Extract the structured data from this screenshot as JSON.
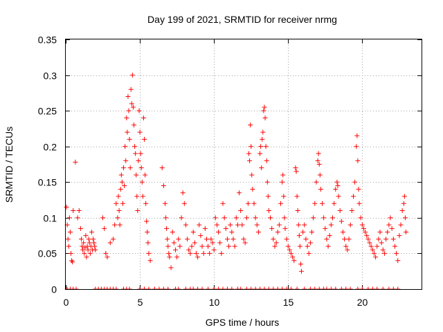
{
  "chart_data": {
    "type": "scatter",
    "title": "Day 199 of 2021, SRMTID for receiver nrmg",
    "xlabel": "GPS time / hours",
    "ylabel": "SRMTID / TECUs",
    "xlim": [
      0,
      24
    ],
    "ylim": [
      0,
      0.35
    ],
    "xticks": [
      0,
      5,
      10,
      15,
      20
    ],
    "xtick_labels": [
      "0",
      "5",
      "10",
      "15",
      "20"
    ],
    "yticks": [
      0,
      0.05,
      0.1,
      0.15,
      0.2,
      0.25,
      0.3,
      0.35
    ],
    "ytick_labels": [
      "0",
      "0.05",
      "0.1",
      "0.15",
      "0.2",
      "0.25",
      "0.3",
      "0.35"
    ],
    "grid": true,
    "marker": "plus",
    "color": "#ff0000",
    "series": [
      {
        "name": "SRMTID",
        "points": [
          [
            0.05,
            0.115
          ],
          [
            0.1,
            0.09
          ],
          [
            0.15,
            0.07
          ],
          [
            0.2,
            0.06
          ],
          [
            0.25,
            0.1
          ],
          [
            0.3,
            0.08
          ],
          [
            0.35,
            0.05
          ],
          [
            0.4,
            0.04
          ],
          [
            0.45,
            0.038
          ],
          [
            0.5,
            0.11
          ],
          [
            0.65,
            0.178
          ],
          [
            0.8,
            0.1
          ],
          [
            0.9,
            0.11
          ],
          [
            1.0,
            0.085
          ],
          [
            1.05,
            0.07
          ],
          [
            1.1,
            0.06
          ],
          [
            1.15,
            0.055
          ],
          [
            1.2,
            0.065
          ],
          [
            1.25,
            0.05
          ],
          [
            1.3,
            0.058
          ],
          [
            1.35,
            0.075
          ],
          [
            1.4,
            0.045
          ],
          [
            1.45,
            0.06
          ],
          [
            1.5,
            0.055
          ],
          [
            1.55,
            0.07
          ],
          [
            1.6,
            0.065
          ],
          [
            1.65,
            0.05
          ],
          [
            1.7,
            0.06
          ],
          [
            1.75,
            0.08
          ],
          [
            1.8,
            0.055
          ],
          [
            1.85,
            0.07
          ],
          [
            1.9,
            0.065
          ],
          [
            1.95,
            0.06
          ],
          [
            2.0,
            0.055
          ],
          [
            2.5,
            0.1
          ],
          [
            2.6,
            0.085
          ],
          [
            2.7,
            0.05
          ],
          [
            2.8,
            0.045
          ],
          [
            3.0,
            0.065
          ],
          [
            3.2,
            0.07
          ],
          [
            3.3,
            0.09
          ],
          [
            3.4,
            0.12
          ],
          [
            3.5,
            0.1
          ],
          [
            3.55,
            0.13
          ],
          [
            3.6,
            0.11
          ],
          [
            3.65,
            0.09
          ],
          [
            3.7,
            0.14
          ],
          [
            3.75,
            0.16
          ],
          [
            3.8,
            0.15
          ],
          [
            3.85,
            0.12
          ],
          [
            3.9,
            0.17
          ],
          [
            3.95,
            0.145
          ],
          [
            4.0,
            0.2
          ],
          [
            4.05,
            0.18
          ],
          [
            4.1,
            0.24
          ],
          [
            4.15,
            0.22
          ],
          [
            4.2,
            0.27
          ],
          [
            4.25,
            0.25
          ],
          [
            4.3,
            0.21
          ],
          [
            4.35,
            0.17
          ],
          [
            4.4,
            0.28
          ],
          [
            4.45,
            0.26
          ],
          [
            4.5,
            0.3
          ],
          [
            4.55,
            0.255
          ],
          [
            4.6,
            0.23
          ],
          [
            4.65,
            0.2
          ],
          [
            4.7,
            0.19
          ],
          [
            4.75,
            0.16
          ],
          [
            4.8,
            0.13
          ],
          [
            4.85,
            0.11
          ],
          [
            4.9,
            0.18
          ],
          [
            4.95,
            0.25
          ],
          [
            5.0,
            0.22
          ],
          [
            5.05,
            0.19
          ],
          [
            5.1,
            0.17
          ],
          [
            5.15,
            0.15
          ],
          [
            5.2,
            0.13
          ],
          [
            5.25,
            0.24
          ],
          [
            5.3,
            0.21
          ],
          [
            5.35,
            0.16
          ],
          [
            5.4,
            0.12
          ],
          [
            5.45,
            0.095
          ],
          [
            5.5,
            0.08
          ],
          [
            5.55,
            0.065
          ],
          [
            5.6,
            0.05
          ],
          [
            5.7,
            0.04
          ],
          [
            6.5,
            0.17
          ],
          [
            6.6,
            0.145
          ],
          [
            6.7,
            0.12
          ],
          [
            6.75,
            0.1
          ],
          [
            6.8,
            0.085
          ],
          [
            6.85,
            0.07
          ],
          [
            6.9,
            0.06
          ],
          [
            6.95,
            0.05
          ],
          [
            7.0,
            0.045
          ],
          [
            7.1,
            0.03
          ],
          [
            7.2,
            0.08
          ],
          [
            7.3,
            0.065
          ],
          [
            7.4,
            0.055
          ],
          [
            7.5,
            0.045
          ],
          [
            7.6,
            0.07
          ],
          [
            7.7,
            0.06
          ],
          [
            7.8,
            0.1
          ],
          [
            7.9,
            0.135
          ],
          [
            8.0,
            0.12
          ],
          [
            8.1,
            0.09
          ],
          [
            8.2,
            0.07
          ],
          [
            8.3,
            0.055
          ],
          [
            8.4,
            0.05
          ],
          [
            8.5,
            0.06
          ],
          [
            8.6,
            0.08
          ],
          [
            8.7,
            0.065
          ],
          [
            8.8,
            0.05
          ],
          [
            8.9,
            0.045
          ],
          [
            9.0,
            0.09
          ],
          [
            9.1,
            0.075
          ],
          [
            9.2,
            0.06
          ],
          [
            9.3,
            0.05
          ],
          [
            9.4,
            0.085
          ],
          [
            9.5,
            0.07
          ],
          [
            9.6,
            0.06
          ],
          [
            9.7,
            0.05
          ],
          [
            9.8,
            0.07
          ],
          [
            9.9,
            0.065
          ],
          [
            10.0,
            0.055
          ],
          [
            10.1,
            0.1
          ],
          [
            10.2,
            0.09
          ],
          [
            10.3,
            0.08
          ],
          [
            10.4,
            0.065
          ],
          [
            10.5,
            0.05
          ],
          [
            10.6,
            0.12
          ],
          [
            10.7,
            0.1
          ],
          [
            10.8,
            0.085
          ],
          [
            10.9,
            0.07
          ],
          [
            11.0,
            0.06
          ],
          [
            11.1,
            0.09
          ],
          [
            11.2,
            0.08
          ],
          [
            11.3,
            0.07
          ],
          [
            11.4,
            0.06
          ],
          [
            11.5,
            0.1
          ],
          [
            11.6,
            0.09
          ],
          [
            11.7,
            0.135
          ],
          [
            11.8,
            0.11
          ],
          [
            11.9,
            0.09
          ],
          [
            12.0,
            0.07
          ],
          [
            12.1,
            0.065
          ],
          [
            12.2,
            0.1
          ],
          [
            12.3,
            0.12
          ],
          [
            12.35,
            0.19
          ],
          [
            12.4,
            0.18
          ],
          [
            12.45,
            0.23
          ],
          [
            12.5,
            0.2
          ],
          [
            12.55,
            0.16
          ],
          [
            12.6,
            0.14
          ],
          [
            12.7,
            0.12
          ],
          [
            12.8,
            0.1
          ],
          [
            12.9,
            0.09
          ],
          [
            13.0,
            0.08
          ],
          [
            13.1,
            0.19
          ],
          [
            13.15,
            0.2
          ],
          [
            13.2,
            0.17
          ],
          [
            13.25,
            0.21
          ],
          [
            13.3,
            0.22
          ],
          [
            13.35,
            0.25
          ],
          [
            13.4,
            0.255
          ],
          [
            13.45,
            0.24
          ],
          [
            13.5,
            0.2
          ],
          [
            13.55,
            0.18
          ],
          [
            13.6,
            0.15
          ],
          [
            13.65,
            0.13
          ],
          [
            13.7,
            0.11
          ],
          [
            13.8,
            0.1
          ],
          [
            13.9,
            0.085
          ],
          [
            14.0,
            0.07
          ],
          [
            14.1,
            0.06
          ],
          [
            14.2,
            0.065
          ],
          [
            14.3,
            0.08
          ],
          [
            14.4,
            0.09
          ],
          [
            14.5,
            0.12
          ],
          [
            14.6,
            0.15
          ],
          [
            14.65,
            0.16
          ],
          [
            14.7,
            0.13
          ],
          [
            14.75,
            0.1
          ],
          [
            14.8,
            0.085
          ],
          [
            14.9,
            0.07
          ],
          [
            15.0,
            0.06
          ],
          [
            15.1,
            0.055
          ],
          [
            15.2,
            0.05
          ],
          [
            15.3,
            0.045
          ],
          [
            15.4,
            0.04
          ],
          [
            15.5,
            0.17
          ],
          [
            15.55,
            0.165
          ],
          [
            15.6,
            0.13
          ],
          [
            15.65,
            0.11
          ],
          [
            15.7,
            0.09
          ],
          [
            15.75,
            0.075
          ],
          [
            15.8,
            0.06
          ],
          [
            15.85,
            0.035
          ],
          [
            15.9,
            0.025
          ],
          [
            16.0,
            0.08
          ],
          [
            16.1,
            0.09
          ],
          [
            16.2,
            0.07
          ],
          [
            16.3,
            0.06
          ],
          [
            16.4,
            0.05
          ],
          [
            16.5,
            0.065
          ],
          [
            16.6,
            0.08
          ],
          [
            16.7,
            0.1
          ],
          [
            16.8,
            0.12
          ],
          [
            16.9,
            0.15
          ],
          [
            17.0,
            0.18
          ],
          [
            17.05,
            0.19
          ],
          [
            17.1,
            0.175
          ],
          [
            17.15,
            0.16
          ],
          [
            17.2,
            0.14
          ],
          [
            17.3,
            0.12
          ],
          [
            17.4,
            0.1
          ],
          [
            17.5,
            0.085
          ],
          [
            17.6,
            0.07
          ],
          [
            17.7,
            0.06
          ],
          [
            17.8,
            0.075
          ],
          [
            17.9,
            0.09
          ],
          [
            18.0,
            0.1
          ],
          [
            18.1,
            0.12
          ],
          [
            18.2,
            0.14
          ],
          [
            18.3,
            0.15
          ],
          [
            18.35,
            0.145
          ],
          [
            18.4,
            0.13
          ],
          [
            18.5,
            0.11
          ],
          [
            18.6,
            0.095
          ],
          [
            18.7,
            0.08
          ],
          [
            18.8,
            0.07
          ],
          [
            18.9,
            0.06
          ],
          [
            19.0,
            0.055
          ],
          [
            19.1,
            0.07
          ],
          [
            19.2,
            0.09
          ],
          [
            19.3,
            0.11
          ],
          [
            19.4,
            0.13
          ],
          [
            19.5,
            0.15
          ],
          [
            19.6,
            0.2
          ],
          [
            19.65,
            0.215
          ],
          [
            19.7,
            0.18
          ],
          [
            19.75,
            0.14
          ],
          [
            19.8,
            0.12
          ],
          [
            19.9,
            0.1
          ],
          [
            20.0,
            0.09
          ],
          [
            20.1,
            0.085
          ],
          [
            20.2,
            0.08
          ],
          [
            20.3,
            0.075
          ],
          [
            20.4,
            0.07
          ],
          [
            20.5,
            0.065
          ],
          [
            20.6,
            0.06
          ],
          [
            20.7,
            0.055
          ],
          [
            20.8,
            0.05
          ],
          [
            20.9,
            0.045
          ],
          [
            21.0,
            0.06
          ],
          [
            21.1,
            0.07
          ],
          [
            21.2,
            0.08
          ],
          [
            21.3,
            0.065
          ],
          [
            21.4,
            0.055
          ],
          [
            21.5,
            0.05
          ],
          [
            21.6,
            0.07
          ],
          [
            21.7,
            0.08
          ],
          [
            21.8,
            0.09
          ],
          [
            21.9,
            0.1
          ],
          [
            22.0,
            0.085
          ],
          [
            22.1,
            0.07
          ],
          [
            22.2,
            0.06
          ],
          [
            22.3,
            0.05
          ],
          [
            22.4,
            0.04
          ],
          [
            22.5,
            0.075
          ],
          [
            22.6,
            0.09
          ],
          [
            22.7,
            0.11
          ],
          [
            22.8,
            0.12
          ],
          [
            22.85,
            0.13
          ],
          [
            22.9,
            0.1
          ],
          [
            22.95,
            0.08
          ]
        ]
      }
    ],
    "zero_points_x": [
      0.1,
      0.3,
      0.5,
      0.7,
      2.0,
      2.2,
      2.4,
      2.6,
      2.8,
      3.0,
      3.2,
      3.4,
      3.9,
      4.1,
      4.3,
      5.0,
      5.3,
      5.6,
      6.0,
      6.3,
      6.6,
      6.9,
      7.4,
      7.6,
      8.1,
      8.4,
      8.6,
      8.9,
      9.2,
      9.6,
      10.0,
      10.3,
      10.6,
      10.9,
      11.2,
      11.6,
      11.8,
      12.2,
      12.5,
      12.8,
      13.1,
      13.4,
      13.7,
      14.0,
      14.3,
      14.6,
      14.9,
      15.2,
      15.6,
      16.1,
      16.5,
      16.8,
      17.1,
      17.4,
      17.6,
      17.9,
      18.2,
      18.6,
      18.9,
      19.2,
      19.7,
      20.0,
      20.4,
      20.7,
      21.0,
      21.4,
      21.8,
      22.1,
      22.4
    ]
  }
}
